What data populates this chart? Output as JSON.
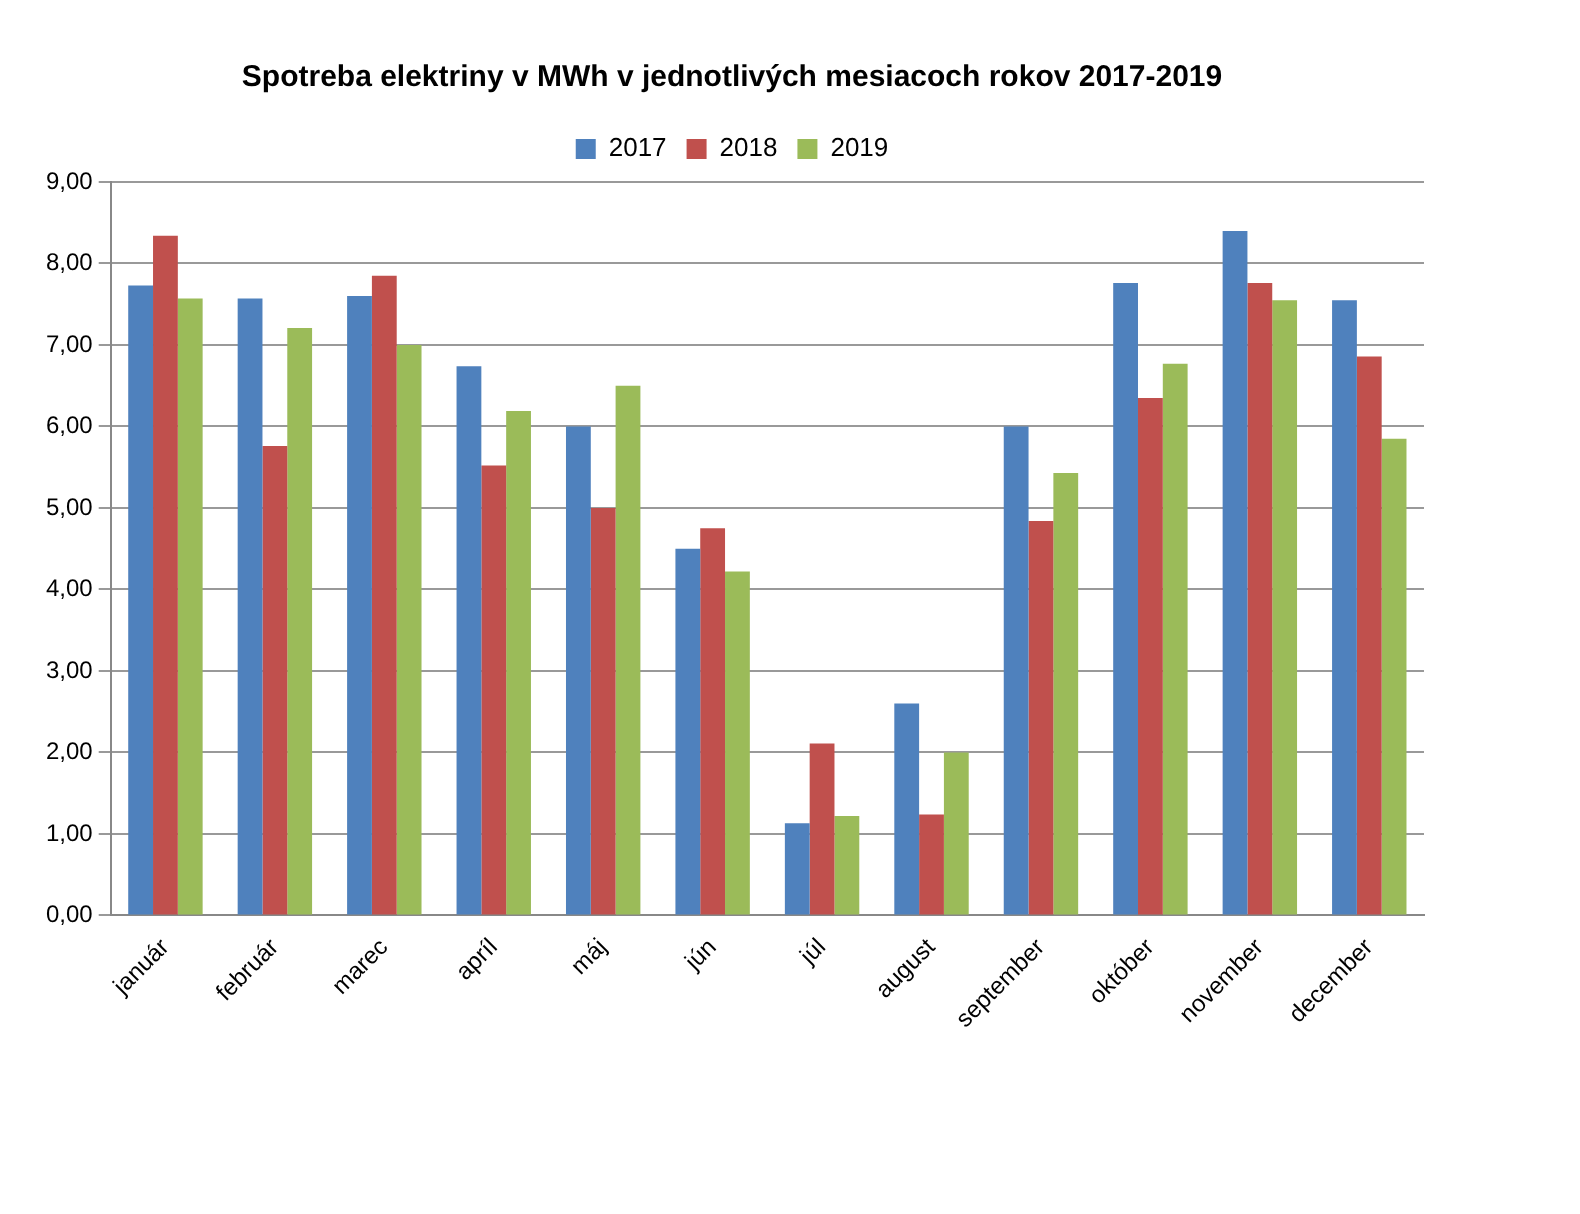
{
  "chart_data": {
    "type": "bar",
    "title": "Spotreba elektriny v MWh v jednotlivých mesiacoch rokov 2017-2019",
    "categories": [
      "január",
      "február",
      "marec",
      "apríl",
      "máj",
      "jún",
      "júl",
      "august",
      "september",
      "október",
      "november",
      "december"
    ],
    "series": [
      {
        "name": "2017",
        "color": "#4f81bd",
        "values": [
          7.73,
          7.57,
          7.6,
          6.74,
          6.0,
          4.5,
          1.13,
          2.6,
          6.0,
          7.76,
          8.4,
          7.55
        ]
      },
      {
        "name": "2018",
        "color": "#c0504d",
        "values": [
          8.34,
          5.76,
          7.85,
          5.52,
          5.0,
          4.75,
          2.11,
          1.24,
          4.84,
          6.35,
          7.76,
          6.86
        ]
      },
      {
        "name": "2019",
        "color": "#9bbb59",
        "values": [
          7.57,
          7.21,
          7.0,
          6.19,
          6.5,
          4.22,
          1.22,
          2.0,
          5.43,
          6.77,
          7.55,
          5.85
        ]
      }
    ],
    "ylim": [
      0,
      9
    ],
    "yticks": [
      {
        "value": 0,
        "label": "0,00"
      },
      {
        "value": 1,
        "label": "1,00"
      },
      {
        "value": 2,
        "label": "2,00"
      },
      {
        "value": 3,
        "label": "3,00"
      },
      {
        "value": 4,
        "label": "4,00"
      },
      {
        "value": 5,
        "label": "5,00"
      },
      {
        "value": 6,
        "label": "6,00"
      },
      {
        "value": 7,
        "label": "7,00"
      },
      {
        "value": 8,
        "label": "8,00"
      },
      {
        "value": 9,
        "label": "9,00"
      }
    ],
    "grid": "y",
    "legend": "top"
  }
}
